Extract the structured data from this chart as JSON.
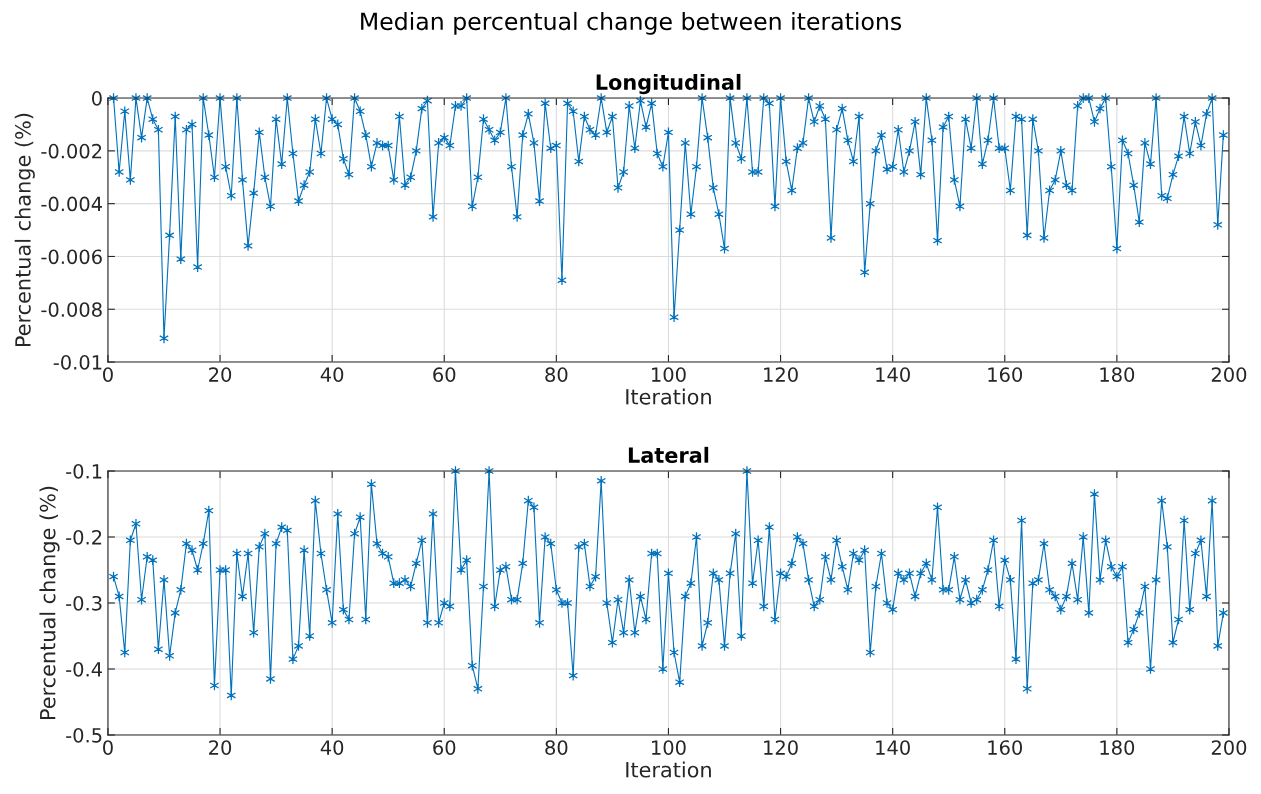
{
  "chart_data": [
    {
      "type": "line",
      "title": "Longitudinal",
      "xlabel": "Iteration",
      "ylabel": "Percentual change (%)",
      "annotations": [
        "Median percentual change between iterations"
      ],
      "marker": "cross",
      "line_style": "solid",
      "grid": true,
      "x": [
        1,
        2,
        3,
        4,
        5,
        6,
        7,
        8,
        9,
        10,
        11,
        12,
        13,
        14,
        15,
        16,
        17,
        18,
        19,
        20,
        21,
        22,
        23,
        24,
        25,
        26,
        27,
        28,
        29,
        30,
        31,
        32,
        33,
        34,
        35,
        36,
        37,
        38,
        39,
        40,
        41,
        42,
        43,
        44,
        45,
        46,
        47,
        48,
        49,
        50,
        51,
        52,
        53,
        54,
        55,
        56,
        57,
        58,
        59,
        60,
        61,
        62,
        63,
        64,
        65,
        66,
        67,
        68,
        69,
        70,
        71,
        72,
        73,
        74,
        75,
        76,
        77,
        78,
        79,
        80,
        81,
        82,
        83,
        84,
        85,
        86,
        87,
        88,
        89,
        90,
        91,
        92,
        93,
        94,
        95,
        96,
        97,
        98,
        99,
        100,
        101,
        102,
        103,
        104,
        105,
        106,
        107,
        108,
        109,
        110,
        111,
        112,
        113,
        114,
        115,
        116,
        117,
        118,
        119,
        120,
        121,
        122,
        123,
        124,
        125,
        126,
        127,
        128,
        129,
        130,
        131,
        132,
        133,
        134,
        135,
        136,
        137,
        138,
        139,
        140,
        141,
        142,
        143,
        144,
        145,
        146,
        147,
        148,
        149,
        150,
        151,
        152,
        153,
        154,
        155,
        156,
        157,
        158,
        159,
        160,
        161,
        162,
        163,
        164,
        165,
        166,
        167,
        168,
        169,
        170,
        171,
        172,
        173,
        174,
        175,
        176,
        177,
        178,
        179,
        180,
        181,
        182,
        183,
        184,
        185,
        186,
        187,
        188,
        189,
        190,
        191,
        192,
        193,
        194,
        195,
        196,
        197,
        198,
        199
      ],
      "series": [
        {
          "color": "#0072bd",
          "values": [
            0,
            -0.0028,
            -0.0005,
            -0.0031,
            0,
            -0.0015,
            0,
            -0.0008,
            -0.0012,
            -0.0091,
            -0.0052,
            -0.0007,
            -0.0061,
            -0.0012,
            -0.001,
            -0.0064,
            0,
            -0.0014,
            -0.003,
            0,
            -0.0026,
            -0.0037,
            0,
            -0.0031,
            -0.0056,
            -0.0036,
            -0.0013,
            -0.003,
            -0.0041,
            -0.0008,
            -0.0025,
            0,
            -0.0021,
            -0.0039,
            -0.0033,
            -0.0028,
            -0.0008,
            -0.0021,
            0,
            -0.0008,
            -0.001,
            -0.0023,
            -0.0029,
            0,
            -0.0005,
            -0.0014,
            -0.0026,
            -0.0017,
            -0.0018,
            -0.0018,
            -0.0031,
            -0.0007,
            -0.0033,
            -0.003,
            -0.002,
            -0.0004,
            -0.0001,
            -0.0045,
            -0.0017,
            -0.0015,
            -0.0018,
            -0.0003,
            -0.0003,
            0,
            -0.0041,
            -0.003,
            -0.0008,
            -0.0012,
            -0.0016,
            -0.0013,
            0,
            -0.0026,
            -0.0045,
            -0.0014,
            -0.0006,
            -0.0017,
            -0.0039,
            -0.0002,
            -0.0019,
            -0.0018,
            -0.0069,
            -0.0002,
            -0.0005,
            -0.0024,
            -0.0007,
            -0.0012,
            -0.0014,
            0,
            -0.0013,
            -0.0007,
            -0.0034,
            -0.0028,
            -0.0003,
            -0.0019,
            -0.0001,
            -0.0011,
            -0.0002,
            -0.0021,
            -0.0026,
            -0.0013,
            -0.0083,
            -0.005,
            -0.0017,
            -0.0044,
            -0.0026,
            0,
            -0.0015,
            -0.0034,
            -0.0044,
            -0.0057,
            0,
            -0.0017,
            -0.0023,
            0,
            -0.0028,
            -0.0028,
            0,
            -0.0002,
            -0.0041,
            0,
            -0.0024,
            -0.0035,
            -0.0019,
            -0.0017,
            0,
            -0.0009,
            -0.0003,
            -0.0008,
            -0.0053,
            -0.0012,
            -0.0004,
            -0.0016,
            -0.0024,
            -0.0007,
            -0.0066,
            -0.004,
            -0.002,
            -0.0014,
            -0.0027,
            -0.0026,
            -0.0012,
            -0.0028,
            -0.002,
            -0.0009,
            -0.0029,
            0,
            -0.0016,
            -0.0054,
            -0.0011,
            -0.0007,
            -0.0031,
            -0.0041,
            -0.0008,
            -0.0019,
            0,
            -0.0025,
            -0.0016,
            0,
            -0.0019,
            -0.0019,
            -0.0035,
            -0.0007,
            -0.0008,
            -0.0052,
            -0.0008,
            -0.002,
            -0.0053,
            -0.0035,
            -0.0031,
            -0.002,
            -0.0033,
            -0.0035,
            -0.0003,
            0,
            0,
            -0.0009,
            -0.0004,
            0,
            -0.0026,
            -0.0057,
            -0.0016,
            -0.0021,
            -0.0033,
            -0.0047,
            -0.0017,
            -0.0025,
            0,
            -0.0037,
            -0.0038,
            -0.0029,
            -0.0022,
            -0.0007,
            -0.0021,
            -0.0009,
            -0.0018,
            -0.0006,
            0,
            -0.0048,
            -0.0014
          ]
        }
      ],
      "xlim": [
        0,
        200
      ],
      "xticks": [
        0,
        20,
        40,
        60,
        80,
        100,
        120,
        140,
        160,
        180,
        200
      ],
      "ylim": [
        -0.01,
        0
      ],
      "yticks": [
        -0.01,
        -0.008,
        -0.006,
        -0.004,
        -0.002,
        0
      ]
    },
    {
      "type": "line",
      "title": "Lateral",
      "xlabel": "Iteration",
      "ylabel": "Percentual change (%)",
      "marker": "cross",
      "line_style": "solid",
      "grid": true,
      "x": [
        1,
        2,
        3,
        4,
        5,
        6,
        7,
        8,
        9,
        10,
        11,
        12,
        13,
        14,
        15,
        16,
        17,
        18,
        19,
        20,
        21,
        22,
        23,
        24,
        25,
        26,
        27,
        28,
        29,
        30,
        31,
        32,
        33,
        34,
        35,
        36,
        37,
        38,
        39,
        40,
        41,
        42,
        43,
        44,
        45,
        46,
        47,
        48,
        49,
        50,
        51,
        52,
        53,
        54,
        55,
        56,
        57,
        58,
        59,
        60,
        61,
        62,
        63,
        64,
        65,
        66,
        67,
        68,
        69,
        70,
        71,
        72,
        73,
        74,
        75,
        76,
        77,
        78,
        79,
        80,
        81,
        82,
        83,
        84,
        85,
        86,
        87,
        88,
        89,
        90,
        91,
        92,
        93,
        94,
        95,
        96,
        97,
        98,
        99,
        100,
        101,
        102,
        103,
        104,
        105,
        106,
        107,
        108,
        109,
        110,
        111,
        112,
        113,
        114,
        115,
        116,
        117,
        118,
        119,
        120,
        121,
        122,
        123,
        124,
        125,
        126,
        127,
        128,
        129,
        130,
        131,
        132,
        133,
        134,
        135,
        136,
        137,
        138,
        139,
        140,
        141,
        142,
        143,
        144,
        145,
        146,
        147,
        148,
        149,
        150,
        151,
        152,
        153,
        154,
        155,
        156,
        157,
        158,
        159,
        160,
        161,
        162,
        163,
        164,
        165,
        166,
        167,
        168,
        169,
        170,
        171,
        172,
        173,
        174,
        175,
        176,
        177,
        178,
        179,
        180,
        181,
        182,
        183,
        184,
        185,
        186,
        187,
        188,
        189,
        190,
        191,
        192,
        193,
        194,
        195,
        196,
        197,
        198,
        199
      ],
      "series": [
        {
          "color": "#0072bd",
          "values": [
            -0.26,
            -0.29,
            -0.375,
            -0.205,
            -0.18,
            -0.295,
            -0.23,
            -0.235,
            -0.37,
            -0.265,
            -0.38,
            -0.315,
            -0.28,
            -0.21,
            -0.22,
            -0.25,
            -0.21,
            -0.16,
            -0.425,
            -0.25,
            -0.25,
            -0.44,
            -0.225,
            -0.29,
            -0.225,
            -0.345,
            -0.215,
            -0.195,
            -0.415,
            -0.21,
            -0.185,
            -0.19,
            -0.385,
            -0.365,
            -0.22,
            -0.35,
            -0.145,
            -0.225,
            -0.28,
            -0.33,
            -0.165,
            -0.31,
            -0.325,
            -0.195,
            -0.17,
            -0.325,
            -0.12,
            -0.21,
            -0.225,
            -0.23,
            -0.27,
            -0.27,
            -0.265,
            -0.275,
            -0.24,
            -0.205,
            -0.33,
            -0.165,
            -0.33,
            -0.3,
            -0.305,
            -0.1,
            -0.25,
            -0.235,
            -0.395,
            -0.43,
            -0.275,
            -0.1,
            -0.305,
            -0.25,
            -0.245,
            -0.295,
            -0.295,
            -0.24,
            -0.145,
            -0.155,
            -0.33,
            -0.2,
            -0.21,
            -0.28,
            -0.3,
            -0.3,
            -0.41,
            -0.215,
            -0.21,
            -0.275,
            -0.26,
            -0.115,
            -0.3,
            -0.36,
            -0.295,
            -0.345,
            -0.265,
            -0.345,
            -0.29,
            -0.325,
            -0.225,
            -0.225,
            -0.4,
            -0.255,
            -0.375,
            -0.42,
            -0.29,
            -0.27,
            -0.2,
            -0.365,
            -0.33,
            -0.255,
            -0.265,
            -0.365,
            -0.255,
            -0.195,
            -0.35,
            -0.1,
            -0.27,
            -0.205,
            -0.305,
            -0.185,
            -0.325,
            -0.255,
            -0.26,
            -0.24,
            -0.2,
            -0.21,
            -0.265,
            -0.305,
            -0.295,
            -0.23,
            -0.265,
            -0.205,
            -0.245,
            -0.28,
            -0.225,
            -0.235,
            -0.22,
            -0.375,
            -0.275,
            -0.225,
            -0.3,
            -0.31,
            -0.255,
            -0.265,
            -0.255,
            -0.29,
            -0.255,
            -0.24,
            -0.265,
            -0.155,
            -0.28,
            -0.28,
            -0.23,
            -0.295,
            -0.265,
            -0.3,
            -0.295,
            -0.28,
            -0.25,
            -0.205,
            -0.305,
            -0.235,
            -0.265,
            -0.385,
            -0.175,
            -0.43,
            -0.27,
            -0.265,
            -0.21,
            -0.28,
            -0.29,
            -0.31,
            -0.29,
            -0.24,
            -0.295,
            -0.2,
            -0.315,
            -0.135,
            -0.265,
            -0.205,
            -0.245,
            -0.26,
            -0.245,
            -0.36,
            -0.34,
            -0.315,
            -0.275,
            -0.4,
            -0.265,
            -0.145,
            -0.215,
            -0.36,
            -0.325,
            -0.175,
            -0.31,
            -0.225,
            -0.205,
            -0.29,
            -0.145,
            -0.365,
            -0.315
          ]
        }
      ],
      "xlim": [
        0,
        200
      ],
      "xticks": [
        0,
        20,
        40,
        60,
        80,
        100,
        120,
        140,
        160,
        180,
        200
      ],
      "ylim": [
        -0.5,
        -0.1
      ],
      "yticks": [
        -0.5,
        -0.4,
        -0.3,
        -0.2,
        -0.1
      ]
    }
  ]
}
